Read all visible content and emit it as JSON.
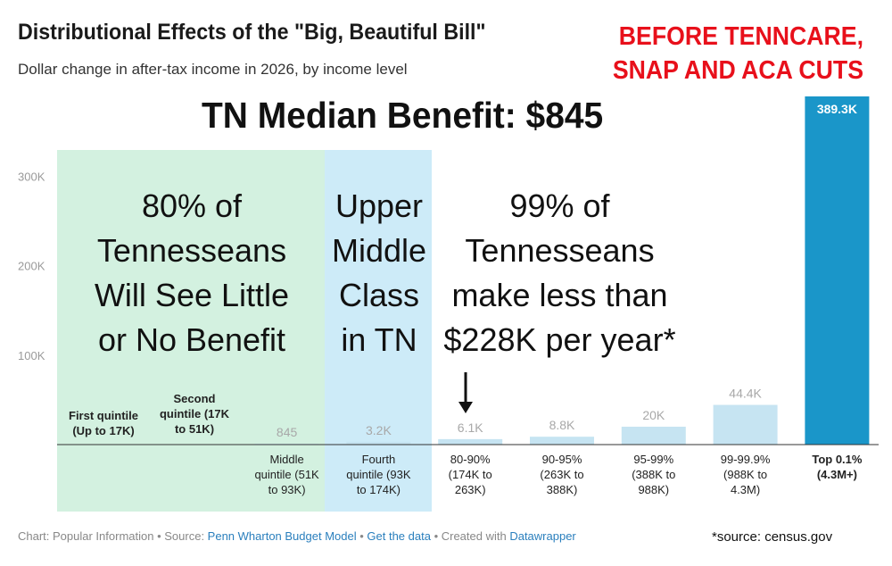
{
  "title": "Distributional Effects of the \"Big, Beautiful Bill\"",
  "subtitle": "Dollar change in after-tax income in 2026, by income level",
  "stamp": {
    "line1": "BEFORE TENNCARE,",
    "line2": "SNAP AND ACA CUTS"
  },
  "headline": "TN Median Benefit: $845",
  "annotations": {
    "left": [
      "80% of",
      "Tennesseans",
      "Will See Little",
      "or No Benefit"
    ],
    "middle": [
      "Upper",
      "Middle",
      "Class",
      "in TN"
    ],
    "right": [
      "99% of",
      "Tennesseans",
      "make less than",
      "$228K per year*"
    ]
  },
  "footer": {
    "chart_credit": "Chart: Popular Information",
    "sep": " • ",
    "source_label": "Source: ",
    "source_link": "Penn Wharton Budget Model",
    "get_data": "Get the data",
    "created_with": "Created with ",
    "tool": "Datawrapper"
  },
  "census_note": "*source: census.gov",
  "colors": {
    "bar_light": "#c6e4f2",
    "bar_dark": "#1a96c9",
    "highlight_green": "#d3f1e0",
    "highlight_blue": "#cdebf8",
    "stamp_red": "#e8101b",
    "link": "#2a7fbd"
  },
  "chart_data": {
    "type": "bar",
    "categories": [
      [
        "First quintile",
        "(Up to 17K)"
      ],
      [
        "Second",
        "quintile (17K",
        "to 51K)"
      ],
      [
        "Middle",
        "quintile (51K",
        "to 93K)"
      ],
      [
        "Fourth",
        "quintile (93K",
        "to 174K)"
      ],
      [
        "80-90%",
        "(174K to",
        "263K)"
      ],
      [
        "90-95%",
        "(263K to",
        "388K)"
      ],
      [
        "95-99%",
        "(388K to",
        "988K)"
      ],
      [
        "99-99.9%",
        "(988K to",
        "4.3M)"
      ],
      [
        "Top 0.1%",
        "(4.3M+)"
      ]
    ],
    "values": [
      0,
      0,
      845,
      3200,
      6100,
      8800,
      20000,
      44400,
      389300
    ],
    "labels": [
      "",
      "",
      "845",
      "3.2K",
      "6.1K",
      "8.8K",
      "20K",
      "44.4K",
      "389.3K"
    ],
    "bold_categories": [
      0,
      1,
      8
    ],
    "highlighted_index": 8,
    "yticks": [
      100000,
      200000,
      300000
    ],
    "ytick_labels": [
      "100K",
      "200K",
      "300K"
    ],
    "ylim": [
      0,
      389300
    ],
    "grid": false,
    "xlabel": "",
    "ylabel": ""
  }
}
